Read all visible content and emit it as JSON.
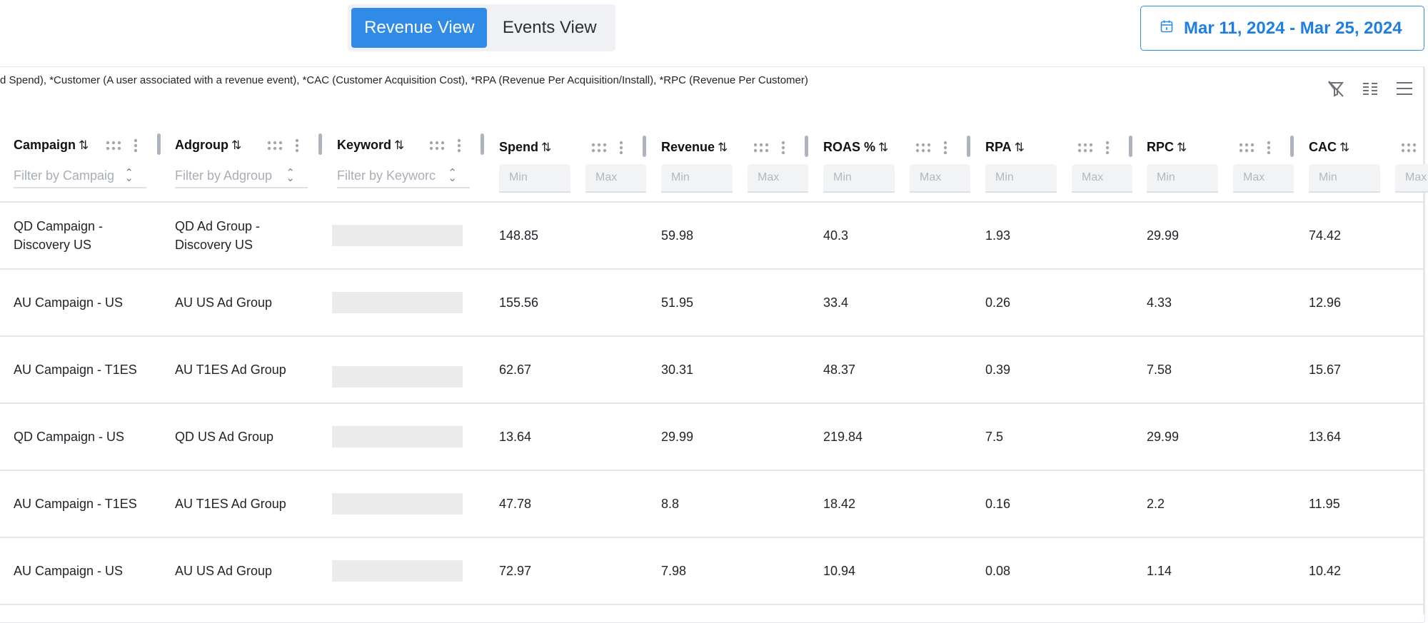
{
  "view_toggle": {
    "options": [
      "Revenue View",
      "Events View"
    ],
    "active": "Revenue View"
  },
  "date_range": {
    "icon": "calendar-icon",
    "label": "Mar 11, 2024 - Mar 25, 2024",
    "accent_color": "#2f8be6"
  },
  "legend_text": "d Spend), *Customer (A user associated with a revenue event), *CAC (Customer Acquisition Cost), *RPA (Revenue Per Acquisition/Install), *RPC (Revenue Per Customer)",
  "toolbar": {
    "icons": [
      "clear-filter-icon",
      "column-toggle-icon",
      "menu-icon"
    ]
  },
  "table": {
    "columns": [
      {
        "key": "campaign",
        "label": "Campaign",
        "filter_type": "text",
        "filter_placeholder": "Filter by Campaig"
      },
      {
        "key": "adgroup",
        "label": "Adgroup",
        "filter_type": "text",
        "filter_placeholder": "Filter by Adgroup"
      },
      {
        "key": "keyword",
        "label": "Keyword",
        "filter_type": "text",
        "filter_placeholder": "Filter by Keyworc"
      },
      {
        "key": "spend",
        "label": "Spend",
        "filter_type": "range",
        "min_placeholder": "Min",
        "max_placeholder": "Max"
      },
      {
        "key": "revenue",
        "label": "Revenue",
        "filter_type": "range",
        "min_placeholder": "Min",
        "max_placeholder": "Max"
      },
      {
        "key": "roas",
        "label": "ROAS %",
        "filter_type": "range",
        "min_placeholder": "Min",
        "max_placeholder": "Max"
      },
      {
        "key": "rpa",
        "label": "RPA",
        "filter_type": "range",
        "min_placeholder": "Min",
        "max_placeholder": "Max"
      },
      {
        "key": "rpc",
        "label": "RPC",
        "filter_type": "range",
        "min_placeholder": "Min",
        "max_placeholder": "Max"
      },
      {
        "key": "cac",
        "label": "CAC",
        "filter_type": "range",
        "min_placeholder": "Min",
        "max_placeholder": "Max"
      }
    ],
    "sort_glyph": "⇅",
    "rows": [
      {
        "campaign": "QD Campaign - Discovery US",
        "adgroup": "QD Ad Group - Discovery US",
        "keyword": "",
        "spend": "148.85",
        "revenue": "59.98",
        "roas": "40.3",
        "rpa": "1.93",
        "rpc": "29.99",
        "cac": "74.42"
      },
      {
        "campaign": "AU Campaign - US",
        "adgroup": "AU US Ad Group",
        "keyword": "",
        "spend": "155.56",
        "revenue": "51.95",
        "roas": "33.4",
        "rpa": "0.26",
        "rpc": "4.33",
        "cac": "12.96"
      },
      {
        "campaign": "AU Campaign - T1ES",
        "adgroup": "AU T1ES Ad Group",
        "keyword": "",
        "spend": "62.67",
        "revenue": "30.31",
        "roas": "48.37",
        "rpa": "0.39",
        "rpc": "7.58",
        "cac": "15.67"
      },
      {
        "campaign": "QD Campaign - US",
        "adgroup": "QD US Ad Group",
        "keyword": "",
        "spend": "13.64",
        "revenue": "29.99",
        "roas": "219.84",
        "rpa": "7.5",
        "rpc": "29.99",
        "cac": "13.64"
      },
      {
        "campaign": "AU Campaign - T1ES",
        "adgroup": "AU T1ES Ad Group",
        "keyword": "",
        "spend": "47.78",
        "revenue": "8.8",
        "roas": "18.42",
        "rpa": "0.16",
        "rpc": "2.2",
        "cac": "11.95"
      },
      {
        "campaign": "AU Campaign - US",
        "adgroup": "AU US Ad Group",
        "keyword": "",
        "spend": "72.97",
        "revenue": "7.98",
        "roas": "10.94",
        "rpa": "0.08",
        "rpc": "1.14",
        "cac": "10.42"
      }
    ]
  }
}
